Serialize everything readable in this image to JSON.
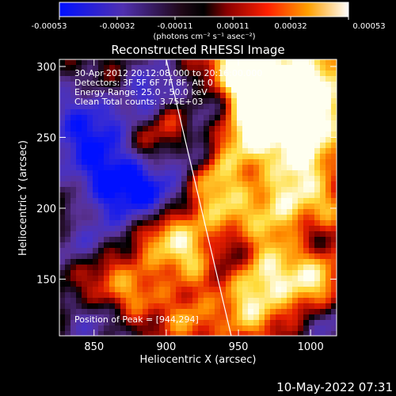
{
  "colorbar": {
    "tick_labels": [
      "-0.00053",
      "-0.00032",
      "-0.00011",
      "0.00011",
      "0.00032",
      "0.00053"
    ],
    "unit_label": "(photons cm⁻² s⁻¹ asec⁻²)",
    "range": [
      -0.00053,
      0.00053
    ]
  },
  "chart_data": {
    "type": "heatmap",
    "title": "Reconstructed RHESSI Image",
    "xlabel": "Heliocentric X (arcsec)",
    "ylabel": "Heliocentric Y (arcsec)",
    "xlim": [
      826,
      1018
    ],
    "ylim": [
      110,
      305
    ],
    "x_ticks": [
      850,
      900,
      950,
      1000
    ],
    "y_ticks": [
      150,
      200,
      250,
      300
    ],
    "colormap": "blue-purple-black-red-orange-yellow-white",
    "limb_line": {
      "x": [
        900,
        945
      ],
      "y": [
        305,
        110
      ],
      "color": "#ffffff"
    },
    "peak_position": [
      944,
      294
    ],
    "annotations": [
      "30-Apr-2012 20:12:08.000 to 20:16:00.000",
      "Detectors: 3F 5F 6F 7F 8F, Att 0",
      "Energy Range: 25.0 - 50.0 keV",
      "Clean    Total counts: 3.75E+03",
      "Position of Peak = [944,294]"
    ]
  },
  "footer": {
    "timestamp": "10-May-2022 07:31"
  }
}
